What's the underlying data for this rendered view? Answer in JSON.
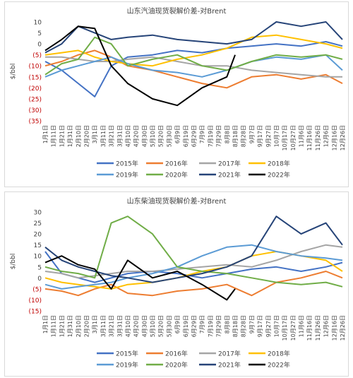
{
  "chart_data": [
    {
      "type": "line",
      "title": "山东汽油现货裂解价差-对Brent",
      "ylabel": "$/bbl",
      "ylim": [
        -35,
        10
      ],
      "yticks": [
        10,
        5,
        0,
        -5,
        -10,
        -15,
        -20,
        -25,
        -30,
        -35
      ],
      "ytick_labels": [
        "10",
        "5",
        "0",
        "(5)",
        "(10)",
        "(15)",
        "(20)",
        "(25)",
        "(30)",
        "(35)"
      ],
      "x_tick_labels": [
        "1月1日",
        "1月11日",
        "1月21日",
        "1月31日",
        "2月10日",
        "2月20日",
        "3月1日",
        "3月11日",
        "3月21日",
        "3月31日",
        "4月10日",
        "4月20日",
        "4月30日",
        "5月10日",
        "5月20日",
        "5月30日",
        "6月9日",
        "6月19日",
        "6月29日",
        "7月9日",
        "7月19日",
        "7月29日",
        "8月8日",
        "8月18日",
        "8月28日",
        "9月7日",
        "9月17日",
        "9月27日",
        "10月7日",
        "10月17日",
        "10月27日",
        "11月6日",
        "11月16日",
        "11月26日",
        "12月6日",
        "12月16日",
        "12月26日"
      ],
      "grid": false,
      "legend_position": "bottom",
      "series": [
        {
          "name": "2015年",
          "color": "#4472c4",
          "x": [
            0,
            2,
            4,
            6,
            8,
            10,
            13,
            16,
            19,
            22,
            25,
            28,
            31,
            34,
            36
          ],
          "values": [
            -8,
            -12,
            -18,
            -24,
            -10,
            -6,
            -5,
            -3,
            -4,
            -2,
            -1,
            0,
            -1,
            1,
            -1
          ]
        },
        {
          "name": "2016年",
          "color": "#ed7d31",
          "x": [
            0,
            2,
            4,
            6,
            8,
            10,
            13,
            16,
            19,
            22,
            25,
            28,
            31,
            34,
            36
          ],
          "values": [
            -10,
            -8,
            -5,
            -3,
            -6,
            -10,
            -12,
            -15,
            -18,
            -20,
            -15,
            -14,
            -16,
            -14,
            -18
          ]
        },
        {
          "name": "2017年",
          "color": "#a5a5a5",
          "x": [
            0,
            2,
            4,
            6,
            8,
            10,
            13,
            16,
            19,
            22,
            25,
            28,
            31,
            34,
            36
          ],
          "values": [
            -6,
            -6,
            -7,
            -8,
            -8,
            -7,
            -6,
            -8,
            -10,
            -10,
            -12,
            -13,
            -14,
            -15,
            -15
          ]
        },
        {
          "name": "2018年",
          "color": "#ffc000",
          "x": [
            0,
            2,
            4,
            6,
            8,
            10,
            13,
            16,
            19,
            22,
            25,
            28,
            31,
            34,
            36
          ],
          "values": [
            -5,
            -4,
            -3,
            -6,
            -8,
            -9,
            -10,
            -7,
            -5,
            -2,
            3,
            4,
            2,
            0,
            -2
          ]
        },
        {
          "name": "2019年",
          "color": "#5b9bd5",
          "x": [
            0,
            2,
            4,
            6,
            8,
            10,
            13,
            16,
            19,
            22,
            25,
            28,
            31,
            34,
            36
          ],
          "values": [
            -15,
            -12,
            -10,
            -8,
            -6,
            -9,
            -12,
            -13,
            -15,
            -12,
            -8,
            -6,
            -7,
            -5,
            -12
          ]
        },
        {
          "name": "2020年",
          "color": "#70ad47",
          "x": [
            0,
            2,
            4,
            6,
            8,
            10,
            13,
            16,
            19,
            22,
            25,
            28,
            31,
            34,
            36
          ],
          "values": [
            -14,
            -9,
            -7,
            3,
            0,
            -10,
            -7,
            -5,
            -10,
            -12,
            -8,
            -5,
            -6,
            -5,
            -7
          ]
        },
        {
          "name": "2021年",
          "color": "#264478",
          "x": [
            0,
            2,
            4,
            6,
            8,
            10,
            13,
            16,
            19,
            22,
            25,
            28,
            31,
            34,
            36
          ],
          "values": [
            -4,
            0,
            8,
            5,
            2,
            3,
            4,
            2,
            1,
            0,
            2,
            10,
            8,
            10,
            2
          ]
        },
        {
          "name": "2022年",
          "color": "#000000",
          "x": [
            0,
            2,
            4,
            6,
            8,
            10,
            13,
            16,
            19,
            22,
            23
          ],
          "values": [
            -3,
            2,
            8,
            7,
            -10,
            -18,
            -25,
            -28,
            -20,
            -15,
            -5
          ]
        }
      ]
    },
    {
      "type": "line",
      "title": "山东柴油现货裂解价差-对Brent",
      "ylabel": "$/bbl",
      "ylim": [
        -15,
        30
      ],
      "yticks": [
        30,
        25,
        20,
        15,
        10,
        5,
        0,
        -5,
        -10,
        -15
      ],
      "ytick_labels": [
        "30",
        "25",
        "20",
        "15",
        "10",
        "5",
        "0",
        "(5)",
        "(10)",
        "(15)"
      ],
      "x_tick_labels": [
        "1月1日",
        "1月11日",
        "1月21日",
        "1月31日",
        "2月10日",
        "2月20日",
        "3月1日",
        "3月11日",
        "3月21日",
        "3月31日",
        "4月10日",
        "4月20日",
        "4月30日",
        "5月10日",
        "5月20日",
        "5月30日",
        "6月9日",
        "6月19日",
        "6月29日",
        "7月9日",
        "7月19日",
        "7月29日",
        "8月8日",
        "8月18日",
        "8月28日",
        "9月7日",
        "9月17日",
        "9月27日",
        "10月7日",
        "10月17日",
        "10月27日",
        "11月6日",
        "11月16日",
        "11月26日",
        "12月6日",
        "12月16日",
        "12月26日"
      ],
      "grid": false,
      "legend_position": "bottom",
      "series": [
        {
          "name": "2015年",
          "color": "#4472c4",
          "x": [
            0,
            2,
            4,
            6,
            8,
            10,
            13,
            16,
            19,
            22,
            25,
            28,
            31,
            34,
            36
          ],
          "values": [
            12,
            2,
            0,
            -2,
            0,
            2,
            3,
            2,
            0,
            2,
            4,
            5,
            3,
            5,
            7
          ]
        },
        {
          "name": "2016年",
          "color": "#ed7d31",
          "x": [
            0,
            2,
            4,
            6,
            8,
            10,
            13,
            16,
            19,
            22,
            25,
            28,
            31,
            34,
            36
          ],
          "values": [
            -5,
            -6,
            -8,
            -5,
            -3,
            -7,
            -8,
            -6,
            -5,
            -3,
            -8,
            -2,
            0,
            3,
            0
          ]
        },
        {
          "name": "2017年",
          "color": "#a5a5a5",
          "x": [
            0,
            2,
            4,
            6,
            8,
            10,
            13,
            16,
            19,
            22,
            25,
            28,
            31,
            34,
            36
          ],
          "values": [
            3,
            2,
            0,
            1,
            2,
            3,
            3,
            4,
            5,
            6,
            5,
            8,
            12,
            15,
            14
          ]
        },
        {
          "name": "2018年",
          "color": "#ffc000",
          "x": [
            0,
            2,
            4,
            6,
            8,
            10,
            13,
            16,
            19,
            22,
            25,
            28,
            31,
            34,
            36
          ],
          "values": [
            0,
            -2,
            -3,
            -4,
            -5,
            -3,
            -2,
            0,
            3,
            5,
            10,
            12,
            10,
            8,
            3
          ]
        },
        {
          "name": "2019年",
          "color": "#5b9bd5",
          "x": [
            0,
            2,
            4,
            6,
            8,
            10,
            13,
            16,
            19,
            22,
            25,
            28,
            31,
            34,
            36
          ],
          "values": [
            -3,
            -5,
            -4,
            -3,
            -2,
            0,
            2,
            5,
            10,
            14,
            15,
            12,
            10,
            9,
            8
          ]
        },
        {
          "name": "2020年",
          "color": "#70ad47",
          "x": [
            0,
            2,
            4,
            6,
            8,
            10,
            13,
            16,
            19,
            22,
            25,
            28,
            31,
            34,
            36
          ],
          "values": [
            5,
            3,
            2,
            0,
            25,
            28,
            20,
            5,
            3,
            2,
            0,
            -2,
            -3,
            -2,
            -4
          ]
        },
        {
          "name": "2021年",
          "color": "#264478",
          "x": [
            0,
            2,
            4,
            6,
            8,
            10,
            13,
            16,
            19,
            22,
            25,
            28,
            31,
            34,
            36
          ],
          "values": [
            14,
            8,
            5,
            3,
            1,
            0,
            -2,
            0,
            2,
            5,
            10,
            28,
            20,
            25,
            15
          ]
        },
        {
          "name": "2022年",
          "color": "#000000",
          "x": [
            0,
            2,
            4,
            6,
            8,
            10,
            13,
            16,
            19,
            22,
            23
          ],
          "values": [
            7,
            10,
            6,
            4,
            -5,
            8,
            0,
            3,
            -3,
            -10,
            -5
          ]
        }
      ]
    }
  ]
}
